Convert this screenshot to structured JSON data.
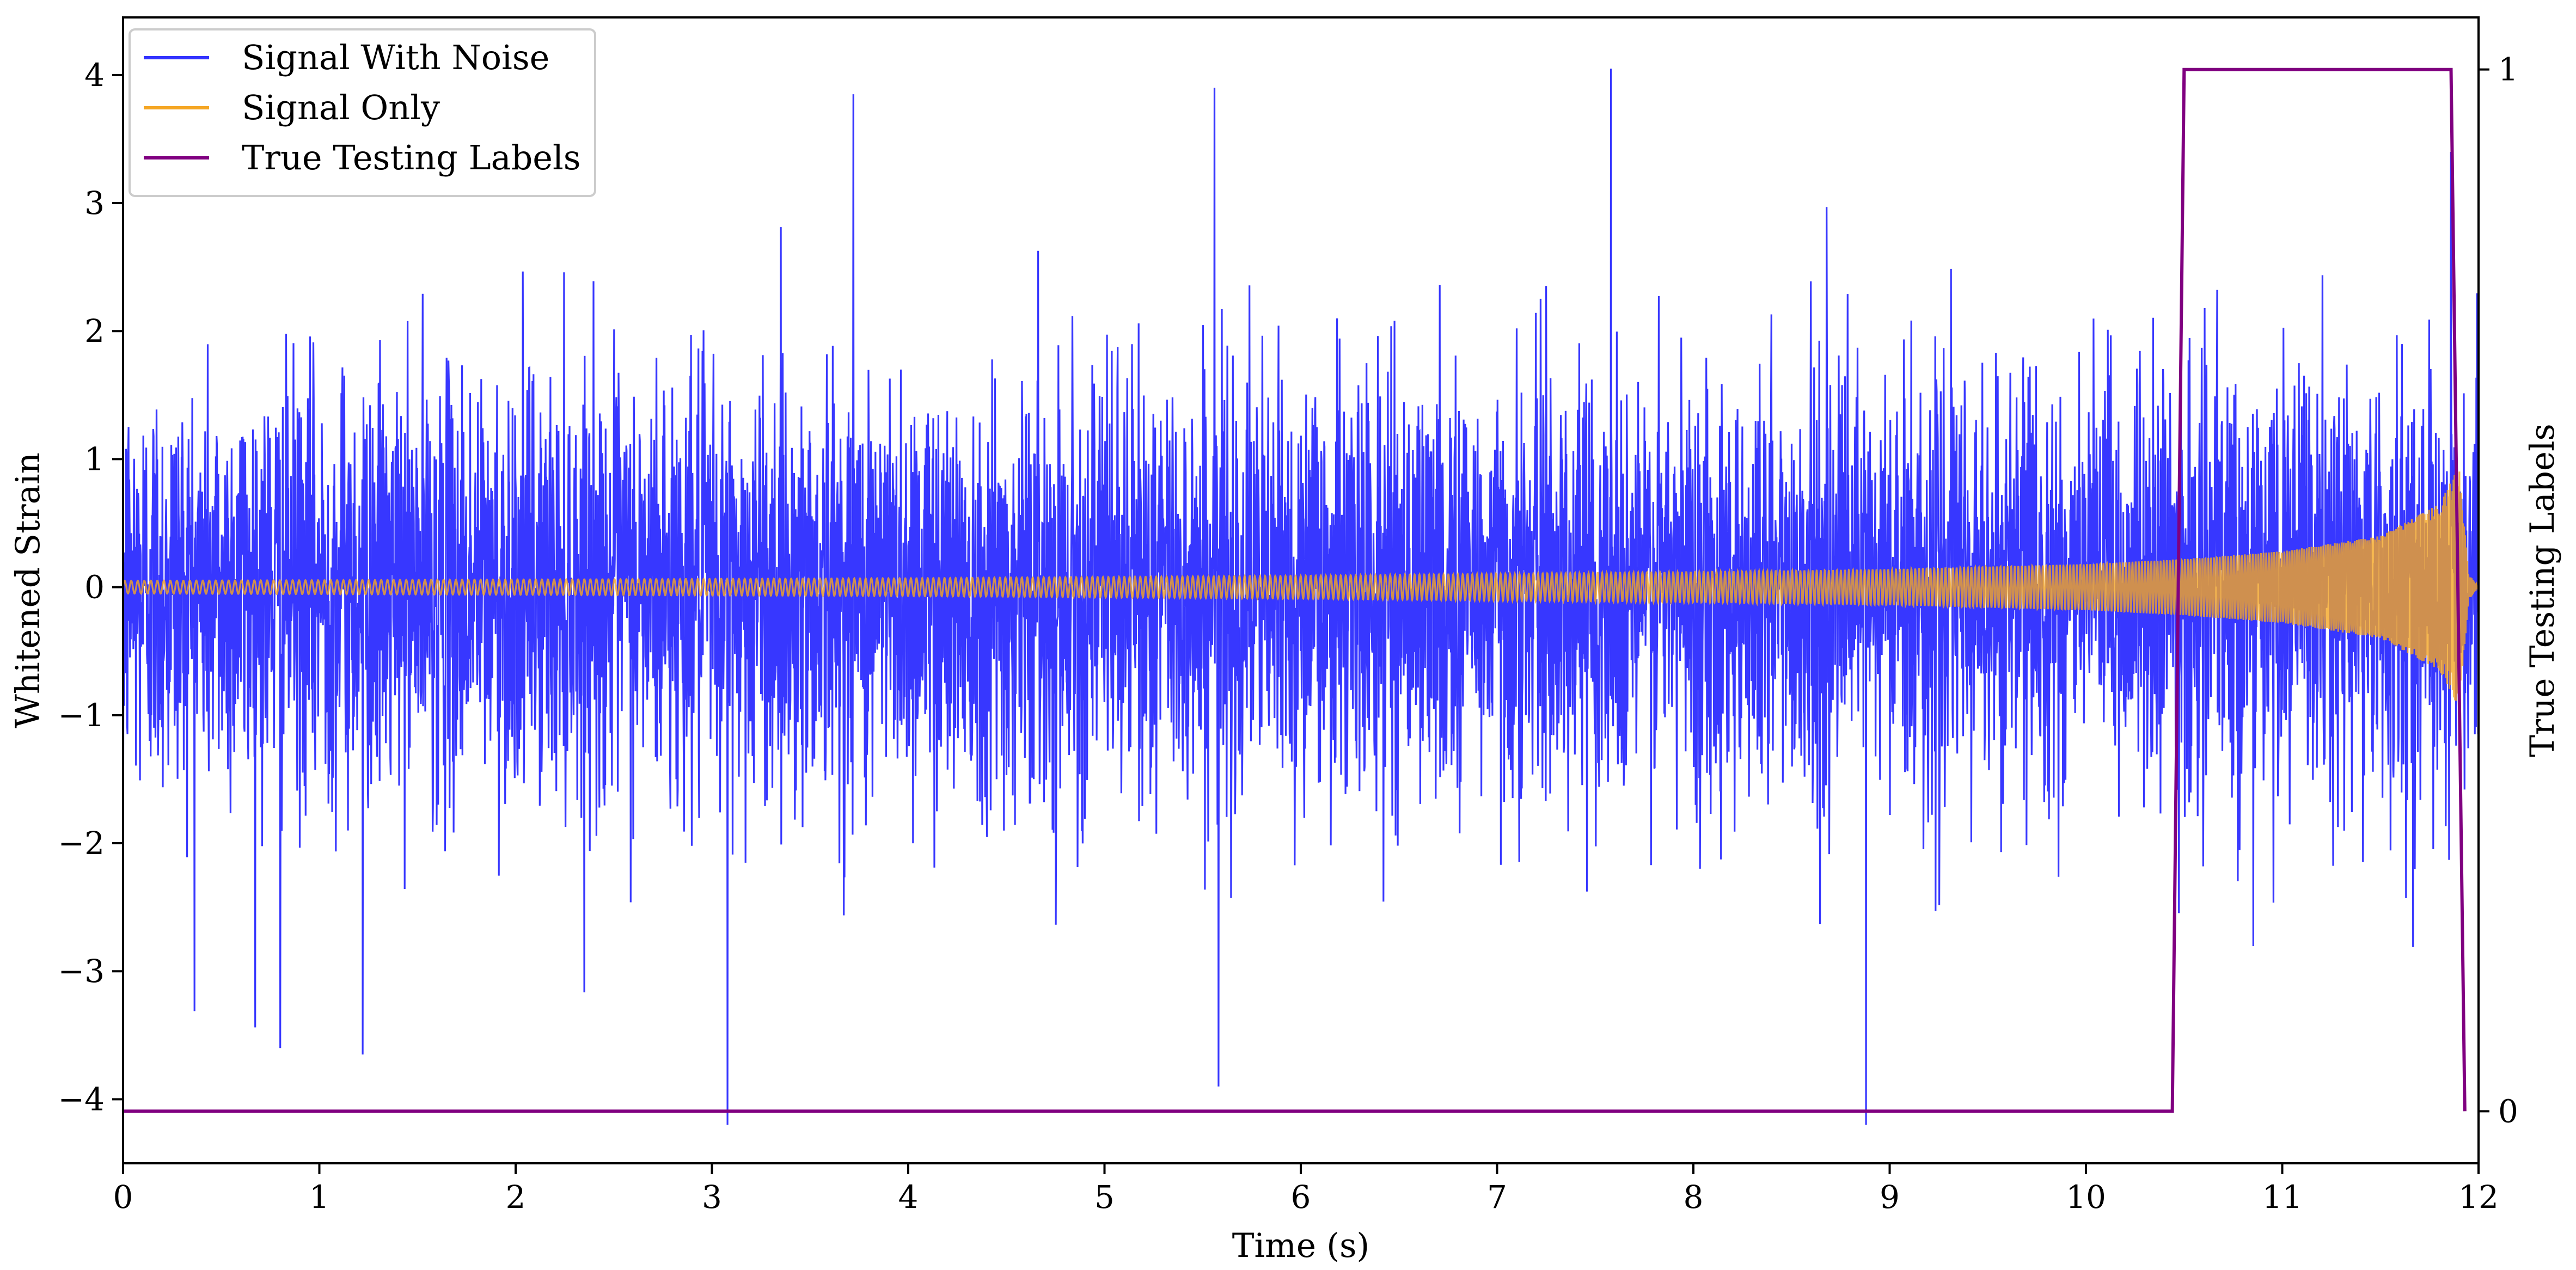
{
  "chart_data": {
    "type": "line",
    "title": "",
    "xlabel": "Time (s)",
    "ylabel": "Whitened Strain",
    "y2label": "True Testing Labels",
    "xlim": [
      0,
      12
    ],
    "ylim": [
      -4.5,
      4.45
    ],
    "y2lim": [
      -0.05,
      1.05
    ],
    "x_ticks": [
      0,
      1,
      2,
      3,
      4,
      5,
      6,
      7,
      8,
      9,
      10,
      11,
      12
    ],
    "x_tick_labels": [
      "0",
      "1",
      "2",
      "3",
      "4",
      "5",
      "6",
      "7",
      "8",
      "9",
      "10",
      "11",
      "12"
    ],
    "y_ticks": [
      -4,
      -3,
      -2,
      -1,
      0,
      1,
      2,
      3,
      4
    ],
    "y_tick_labels": [
      "−4",
      "−3",
      "−2",
      "−1",
      "0",
      "1",
      "2",
      "3",
      "4"
    ],
    "y2_ticks": [
      0,
      1
    ],
    "y2_tick_labels": [
      "0",
      "1"
    ],
    "grid": false,
    "legend_position": "upper-left",
    "series": [
      {
        "name": "Signal With Noise",
        "color": "#3333ff",
        "axis": "left",
        "description": "white noise, std about 0.8, peaks near ±4",
        "sample_peaks": [
          {
            "x": 0.0,
            "y": -3.1
          },
          {
            "x": 0.8,
            "y": -3.6
          },
          {
            "x": 1.22,
            "y": -3.65
          },
          {
            "x": 3.08,
            "y": -4.2
          },
          {
            "x": 3.72,
            "y": 3.85
          },
          {
            "x": 5.56,
            "y": 3.9
          },
          {
            "x": 5.58,
            "y": -3.9
          },
          {
            "x": 7.58,
            "y": 4.05
          },
          {
            "x": 8.88,
            "y": -4.2
          },
          {
            "x": 11.86,
            "y": 3.4
          }
        ]
      },
      {
        "name": "Signal Only",
        "color": "#f5a623",
        "axis": "left",
        "description": "chirp: amplitude grows from about 0.05 at t=0 to about 1.0 at merger t≈11.9, then rings down",
        "envelope": [
          {
            "x": 0,
            "amp": 0.05
          },
          {
            "x": 2,
            "amp": 0.06
          },
          {
            "x": 4,
            "amp": 0.07
          },
          {
            "x": 6,
            "amp": 0.09
          },
          {
            "x": 8,
            "amp": 0.12
          },
          {
            "x": 9,
            "amp": 0.14
          },
          {
            "x": 10,
            "amp": 0.18
          },
          {
            "x": 10.5,
            "amp": 0.22
          },
          {
            "x": 11,
            "amp": 0.28
          },
          {
            "x": 11.5,
            "amp": 0.4
          },
          {
            "x": 11.8,
            "amp": 0.65
          },
          {
            "x": 11.9,
            "amp": 0.95
          },
          {
            "x": 11.95,
            "amp": 0.1
          },
          {
            "x": 12.0,
            "amp": 0.0
          }
        ]
      },
      {
        "name": "True Testing Labels",
        "color": "#800080",
        "axis": "right",
        "points": [
          {
            "x": 0.0,
            "y": 0
          },
          {
            "x": 10.44,
            "y": 0
          },
          {
            "x": 10.5,
            "y": 1
          },
          {
            "x": 11.86,
            "y": 1
          },
          {
            "x": 11.93,
            "y": 0
          }
        ]
      }
    ]
  }
}
